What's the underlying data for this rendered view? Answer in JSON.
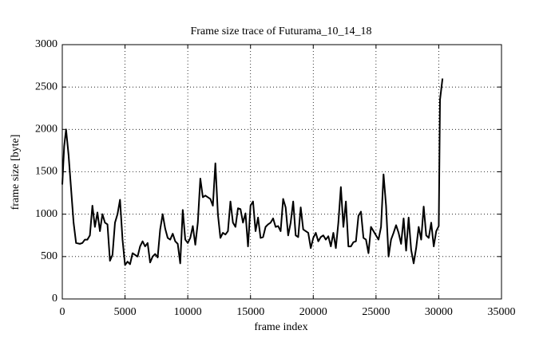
{
  "chart_data": {
    "type": "line",
    "title": "Frame size trace of Futurama_10_14_18",
    "xlabel": "frame index",
    "ylabel": "frame size [byte]",
    "xlim": [
      0,
      35000
    ],
    "ylim": [
      0,
      3000
    ],
    "xticks": [
      0,
      5000,
      10000,
      15000,
      20000,
      25000,
      30000,
      35000
    ],
    "yticks": [
      0,
      500,
      1000,
      1500,
      2000,
      2500,
      3000
    ],
    "grid": true,
    "color": "#000000",
    "x": [
      0,
      150,
      300,
      500,
      700,
      900,
      1100,
      1400,
      1600,
      1800,
      2000,
      2200,
      2400,
      2600,
      2800,
      3000,
      3200,
      3400,
      3600,
      3800,
      4000,
      4200,
      4400,
      4600,
      4800,
      5000,
      5200,
      5400,
      5600,
      5800,
      6000,
      6200,
      6400,
      6600,
      6800,
      7000,
      7200,
      7400,
      7600,
      7800,
      8000,
      8200,
      8400,
      8600,
      8800,
      9000,
      9200,
      9400,
      9600,
      9800,
      10000,
      10200,
      10400,
      10600,
      10800,
      11000,
      11200,
      11400,
      11600,
      11800,
      12000,
      12200,
      12400,
      12600,
      12800,
      13000,
      13200,
      13400,
      13600,
      13800,
      14000,
      14200,
      14400,
      14600,
      14800,
      15000,
      15200,
      15400,
      15600,
      15800,
      16000,
      16200,
      16400,
      16600,
      16800,
      17000,
      17200,
      17400,
      17600,
      17800,
      18000,
      18200,
      18400,
      18600,
      18800,
      19000,
      19200,
      19400,
      19600,
      19800,
      20000,
      20200,
      20400,
      20600,
      20800,
      21000,
      21200,
      21400,
      21600,
      21800,
      22000,
      22200,
      22400,
      22600,
      22800,
      23000,
      23200,
      23400,
      23600,
      23800,
      24000,
      24200,
      24400,
      24600,
      24800,
      25000,
      25200,
      25400,
      25600,
      25800,
      26000,
      26200,
      26400,
      26600,
      26800,
      27000,
      27200,
      27400,
      27600,
      27800,
      28000,
      28200,
      28400,
      28600,
      28800,
      29000,
      29200,
      29400,
      29600,
      29800,
      30000,
      30100,
      30300
    ],
    "values": [
      1350,
      1800,
      2000,
      1700,
      1300,
      900,
      660,
      650,
      660,
      700,
      700,
      750,
      1100,
      850,
      1020,
      800,
      1000,
      900,
      880,
      450,
      520,
      900,
      1000,
      1170,
      700,
      400,
      440,
      410,
      540,
      520,
      500,
      620,
      680,
      620,
      660,
      430,
      500,
      530,
      490,
      820,
      1000,
      830,
      720,
      700,
      770,
      680,
      650,
      420,
      1050,
      700,
      660,
      720,
      860,
      640,
      900,
      1420,
      1200,
      1220,
      1200,
      1180,
      1100,
      1600,
      1000,
      720,
      780,
      760,
      800,
      1150,
      900,
      850,
      1070,
      1060,
      900,
      1010,
      620,
      1100,
      1150,
      800,
      960,
      720,
      730,
      850,
      880,
      900,
      950,
      850,
      860,
      800,
      1180,
      1080,
      750,
      900,
      1150,
      750,
      730,
      1080,
      820,
      800,
      780,
      600,
      720,
      780,
      680,
      730,
      750,
      700,
      740,
      620,
      780,
      600,
      900,
      1320,
      850,
      1150,
      620,
      620,
      670,
      680,
      980,
      1030,
      720,
      700,
      540,
      850,
      800,
      750,
      700,
      850,
      1470,
      1100,
      500,
      700,
      780,
      870,
      780,
      650,
      950,
      570,
      960,
      580,
      420,
      600,
      850,
      700,
      1090,
      750,
      720,
      900,
      620,
      800,
      860,
      2350,
      2600
    ]
  }
}
